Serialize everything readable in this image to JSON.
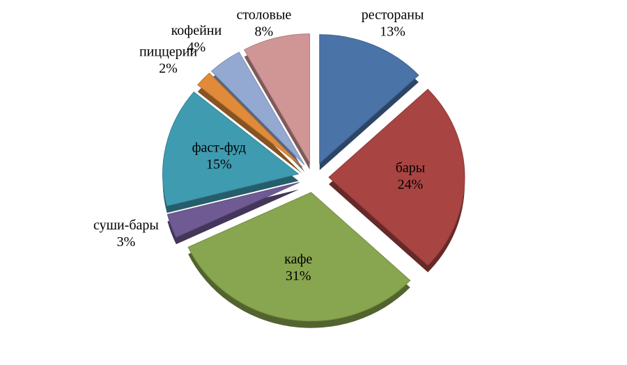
{
  "chart_data": {
    "type": "pie",
    "categories": [
      "рестораны",
      "бары",
      "кафе",
      "суши-бары",
      "фаст-фуд",
      "пиццерии",
      "кофейни",
      "столовые"
    ],
    "values": [
      13,
      24,
      31,
      3,
      15,
      2,
      4,
      8
    ],
    "value_labels": [
      "13%",
      "24%",
      "31%",
      "3%",
      "15%",
      "2%",
      "4%",
      "8%"
    ],
    "colors": [
      "#4a73a8",
      "#a84442",
      "#88a54f",
      "#6f5a94",
      "#3f9bb0",
      "#e08a3a",
      "#93a9d1",
      "#d09595"
    ]
  }
}
